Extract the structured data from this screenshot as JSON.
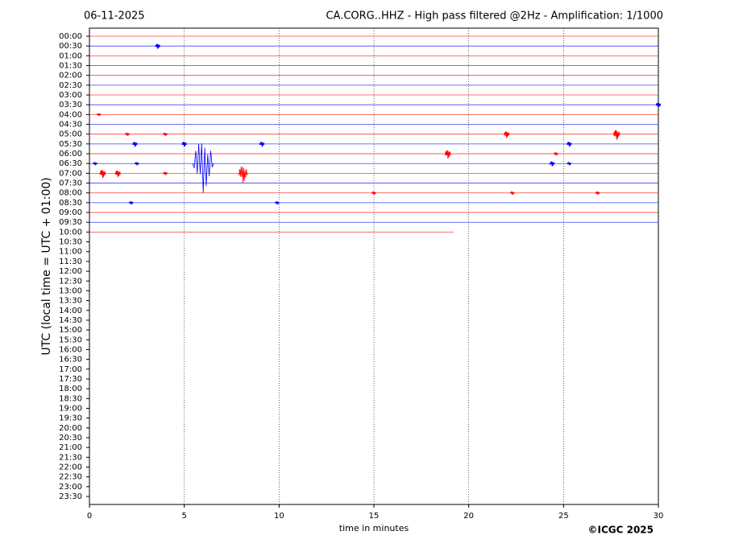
{
  "chart_data": {
    "type": "helicorder",
    "date": "06-11-2025",
    "title": "CA.CORG..HHZ - High pass filtered @2Hz - Amplification: 1/1000",
    "xlabel": "time in minutes",
    "ylabel": "UTC (local time = UTC + 01:00)",
    "credit": "©ICGC 2025",
    "xlim": [
      0,
      30
    ],
    "xticks": [
      0,
      5,
      10,
      15,
      20,
      25,
      30
    ],
    "grid": true,
    "categories": [
      "00:00",
      "00:30",
      "01:00",
      "01:30",
      "02:00",
      "02:30",
      "03:00",
      "03:30",
      "04:00",
      "04:30",
      "05:00",
      "05:30",
      "06:00",
      "06:30",
      "07:00",
      "07:30",
      "08:00",
      "08:30",
      "09:00",
      "09:30",
      "10:00",
      "10:30",
      "11:00",
      "11:30",
      "12:00",
      "12:30",
      "13:00",
      "13:30",
      "14:00",
      "14:30",
      "15:00",
      "15:30",
      "16:00",
      "16:30",
      "17:00",
      "17:30",
      "18:00",
      "18:30",
      "19:00",
      "19:30",
      "20:00",
      "20:30",
      "21:00",
      "21:30",
      "22:00",
      "22:30",
      "23:00",
      "23:30"
    ],
    "colors": [
      "#ff0000",
      "#0000ff"
    ],
    "traces": [
      {
        "end": 30,
        "events": []
      },
      {
        "end": 30,
        "events": [
          {
            "x": 3.6,
            "amplitude": 0.3
          }
        ]
      },
      {
        "end": 30,
        "events": []
      },
      {
        "end": 30,
        "events": []
      },
      {
        "end": 30,
        "events": []
      },
      {
        "end": 30,
        "events": []
      },
      {
        "end": 30,
        "events": []
      },
      {
        "end": 30,
        "events": [
          {
            "x": 30,
            "amplitude": 0.3
          }
        ]
      },
      {
        "end": 30,
        "events": [
          {
            "x": 0.5,
            "amplitude": 0.15
          }
        ]
      },
      {
        "end": 30,
        "events": []
      },
      {
        "end": 30,
        "events": [
          {
            "x": 2.0,
            "amplitude": 0.2
          },
          {
            "x": 4.0,
            "amplitude": 0.2
          },
          {
            "x": 22.0,
            "amplitude": 0.4
          },
          {
            "x": 27.8,
            "amplitude": 0.6
          }
        ]
      },
      {
        "end": 30,
        "events": [
          {
            "x": 2.4,
            "amplitude": 0.3
          },
          {
            "x": 5.0,
            "amplitude": 0.3
          },
          {
            "x": 9.1,
            "amplitude": 0.3
          },
          {
            "x": 25.3,
            "amplitude": 0.3
          }
        ]
      },
      {
        "end": 30,
        "events": [
          {
            "x": 18.9,
            "amplitude": 0.5
          },
          {
            "x": 24.6,
            "amplitude": 0.2
          }
        ]
      },
      {
        "end": 30,
        "events": [
          {
            "x": 0.3,
            "amplitude": 0.2
          },
          {
            "x": 2.5,
            "amplitude": 0.2
          },
          {
            "x": 6.0,
            "amplitude": 3.0
          },
          {
            "x": 24.4,
            "amplitude": 0.3
          },
          {
            "x": 25.3,
            "amplitude": 0.2
          }
        ]
      },
      {
        "end": 30,
        "events": [
          {
            "x": 0.7,
            "amplitude": 0.5
          },
          {
            "x": 1.5,
            "amplitude": 0.4
          },
          {
            "x": 4.0,
            "amplitude": 0.2
          },
          {
            "x": 8.1,
            "amplitude": 1.0
          }
        ]
      },
      {
        "end": 30,
        "events": []
      },
      {
        "end": 30,
        "events": [
          {
            "x": 15.0,
            "amplitude": 0.2
          },
          {
            "x": 22.3,
            "amplitude": 0.2
          },
          {
            "x": 26.8,
            "amplitude": 0.2
          }
        ]
      },
      {
        "end": 30,
        "events": [
          {
            "x": 2.2,
            "amplitude": 0.2
          },
          {
            "x": 9.9,
            "amplitude": 0.2
          }
        ]
      },
      {
        "end": 30,
        "events": []
      },
      {
        "end": 30,
        "events": []
      },
      {
        "end": 19.2,
        "events": []
      }
    ]
  }
}
